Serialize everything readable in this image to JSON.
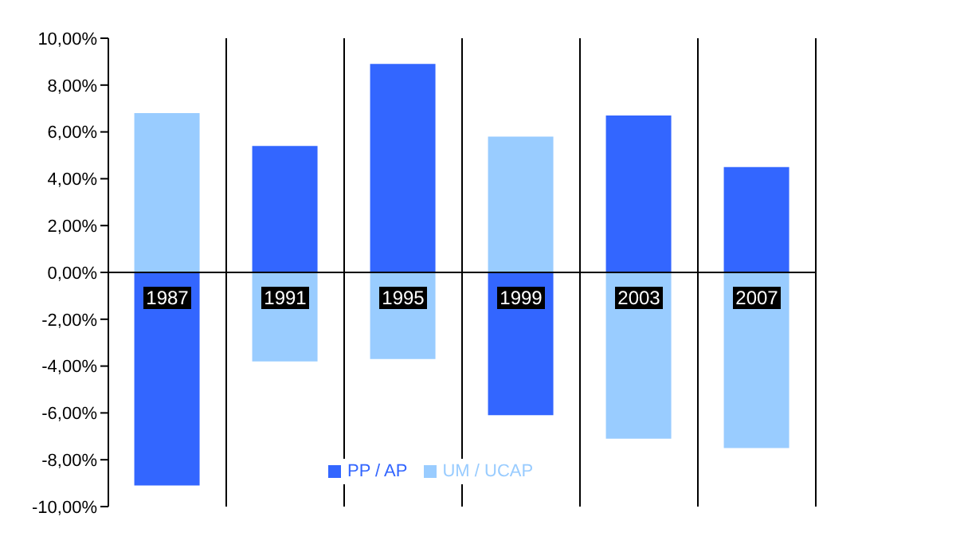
{
  "chart_data": {
    "type": "bar",
    "stacked": true,
    "categories": [
      "1987",
      "1991",
      "1995",
      "1999",
      "2003",
      "2007"
    ],
    "series": [
      {
        "name": "PP / AP",
        "color": "#3366ff",
        "values": [
          -9.1,
          5.4,
          8.9,
          -6.1,
          6.7,
          4.5
        ]
      },
      {
        "name": "UM / UCAP",
        "color": "#99ccff",
        "values": [
          6.8,
          -3.8,
          -3.7,
          5.8,
          -7.1,
          -7.5
        ]
      }
    ],
    "ylim": [
      -10,
      10
    ],
    "yticks": [
      {
        "value": 10,
        "label": "10,00%"
      },
      {
        "value": 8,
        "label": "8,00%"
      },
      {
        "value": 6,
        "label": "6,00%"
      },
      {
        "value": 4,
        "label": "4,00%"
      },
      {
        "value": 2,
        "label": "2,00%"
      },
      {
        "value": 0,
        "label": "0,00%"
      },
      {
        "value": -2,
        "label": "-2,00%"
      },
      {
        "value": -4,
        "label": "-4,00%"
      },
      {
        "value": -6,
        "label": "-6,00%"
      },
      {
        "value": -8,
        "label": "-8,00%"
      },
      {
        "value": -10,
        "label": "-10,00%"
      }
    ],
    "grid": "x",
    "legend": "bottom"
  }
}
